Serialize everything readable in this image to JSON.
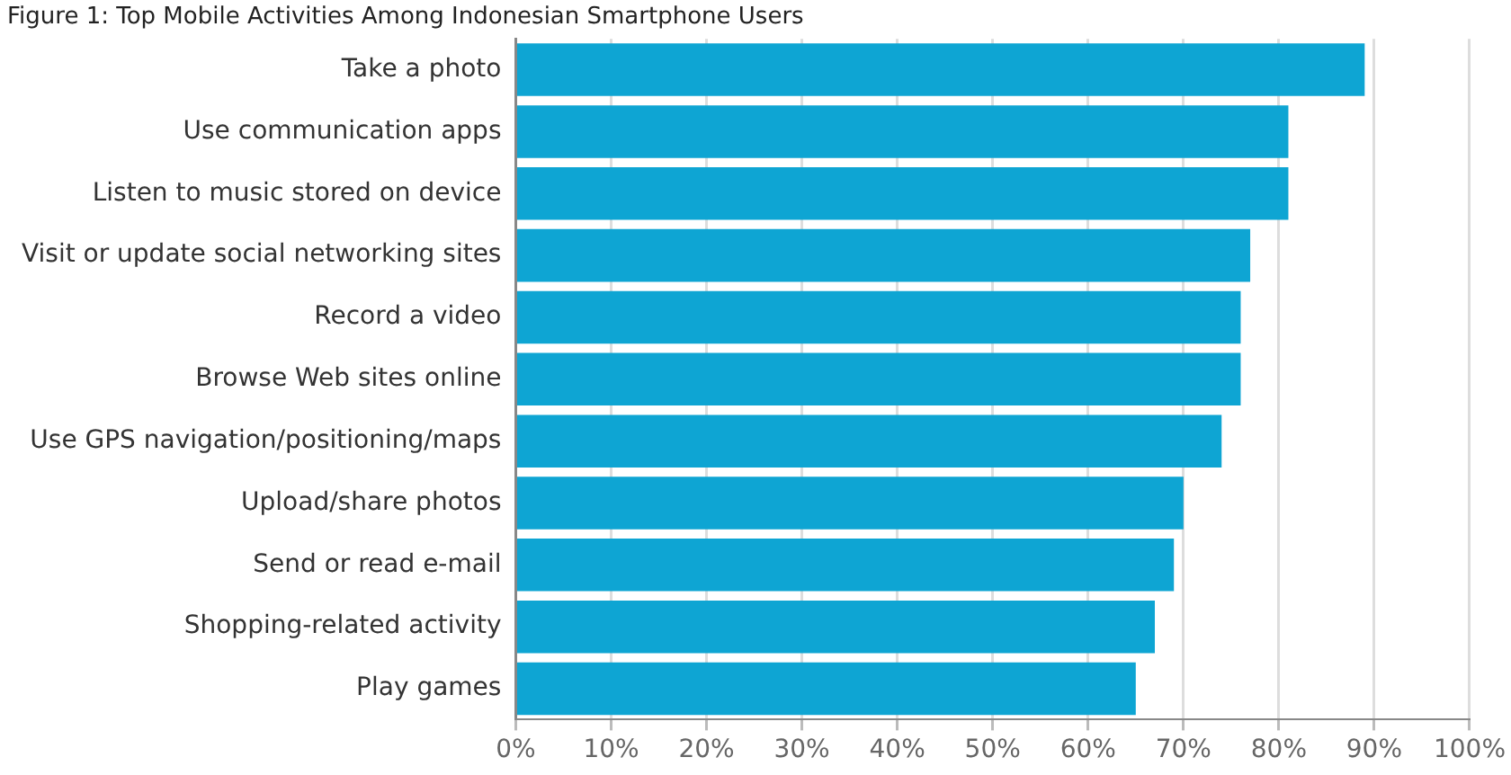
{
  "chart_data": {
    "type": "bar",
    "orientation": "horizontal",
    "title": "Figure 1: Top Mobile Activities Among Indonesian Smartphone Users",
    "categories": [
      "Take a photo",
      "Use communication apps",
      "Listen to music stored on device",
      "Visit or update social networking sites",
      "Record a video",
      "Browse Web sites online",
      "Use GPS navigation/positioning/maps",
      "Upload/share photos",
      "Send or read e-mail",
      "Shopping-related activity",
      "Play games"
    ],
    "values": [
      89,
      81,
      81,
      77,
      76,
      76,
      74,
      70,
      69,
      67,
      65
    ],
    "color": "#0ea5d3",
    "xlim": [
      0,
      100
    ],
    "xticks": [
      {
        "value": 0,
        "label": "0%"
      },
      {
        "value": 10,
        "label": "10%"
      },
      {
        "value": 20,
        "label": "20%"
      },
      {
        "value": 30,
        "label": "30%"
      },
      {
        "value": 40,
        "label": "40%"
      },
      {
        "value": 50,
        "label": "50%"
      },
      {
        "value": 60,
        "label": "60%"
      },
      {
        "value": 70,
        "label": "70%"
      },
      {
        "value": 80,
        "label": "80%"
      },
      {
        "value": 90,
        "label": "90%"
      },
      {
        "value": 100,
        "label": "100%"
      }
    ],
    "grid": "x"
  }
}
